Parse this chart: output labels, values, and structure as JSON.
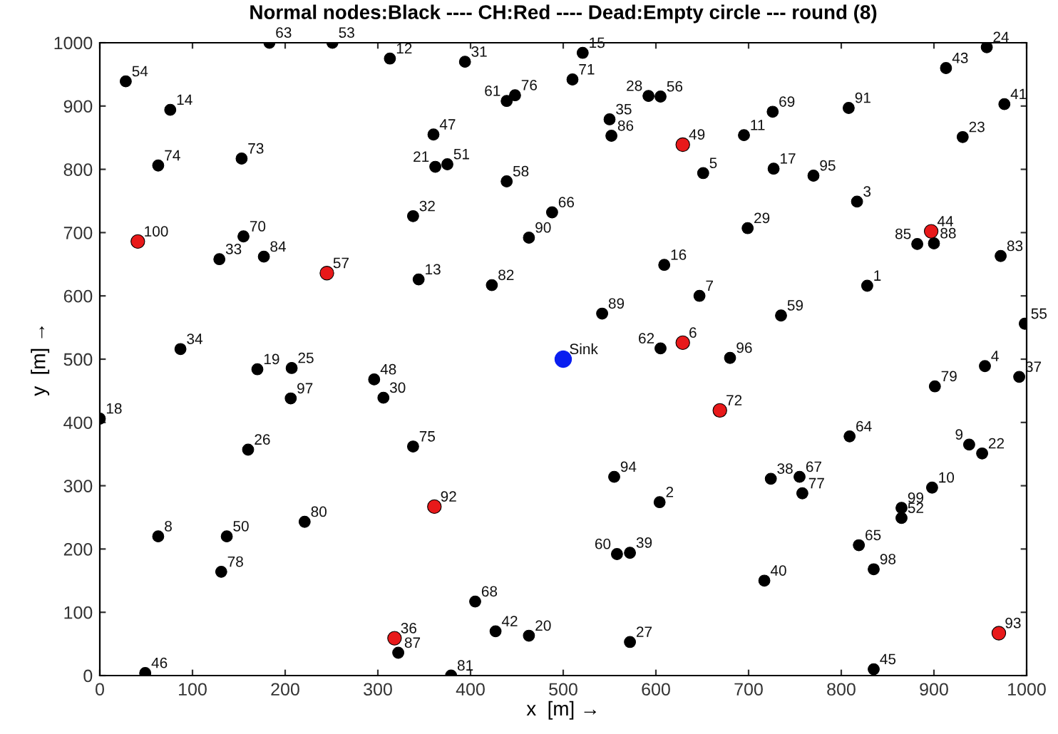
{
  "chart_data": {
    "type": "scatter",
    "title": "Normal nodes:Black ---- CH:Red ---- Dead:Empty circle --- round (8)",
    "xlabel": "x  [m] →",
    "ylabel": "y  [m] →",
    "xlim": [
      0,
      1000
    ],
    "ylim": [
      0,
      1000
    ],
    "xticks": [
      0,
      100,
      200,
      300,
      400,
      500,
      600,
      700,
      800,
      900,
      1000
    ],
    "yticks": [
      0,
      100,
      200,
      300,
      400,
      500,
      600,
      700,
      800,
      900,
      1000
    ],
    "grid": false,
    "marker": "circle",
    "legend": false,
    "series": [
      {
        "color": "#000000",
        "x": [
          183,
          251,
          313,
          28,
          76,
          63,
          153,
          155,
          129,
          177,
          87,
          394,
          521,
          510,
          448,
          439,
          592,
          605,
          550,
          552,
          651,
          360,
          362,
          375,
          439,
          338,
          488,
          463,
          609,
          344,
          423,
          647,
          542,
          605,
          957,
          913,
          976,
          726,
          808,
          695,
          931,
          727,
          770,
          817,
          699,
          900,
          882,
          972,
          828,
          735,
          998,
          680,
          170,
          207,
          296,
          306,
          206,
          0,
          160,
          63,
          137,
          221,
          131,
          49,
          322,
          338,
          555,
          604,
          558,
          572,
          405,
          427,
          463,
          572,
          379,
          955,
          992,
          901,
          809,
          938,
          952,
          724,
          755,
          758,
          898,
          865,
          865,
          819,
          835,
          717,
          835
        ],
        "values": [
          1000,
          1000,
          975,
          939,
          894,
          806,
          817,
          694,
          658,
          662,
          516,
          970,
          984,
          942,
          917,
          908,
          916,
          915,
          879,
          853,
          794,
          855,
          804,
          808,
          781,
          726,
          732,
          692,
          649,
          626,
          617,
          600,
          572,
          517,
          993,
          960,
          903,
          891,
          897,
          854,
          851,
          801,
          790,
          749,
          707,
          683,
          682,
          663,
          616,
          569,
          556,
          502,
          484,
          486,
          468,
          439,
          438,
          406,
          357,
          220,
          220,
          243,
          164,
          4,
          36,
          362,
          314,
          274,
          192,
          194,
          117,
          70,
          63,
          53,
          0,
          489,
          472,
          457,
          378,
          365,
          351,
          311,
          314,
          288,
          297,
          265,
          249,
          206,
          168,
          150,
          10
        ]
      },
      {
        "color": "#e8191a",
        "x": [
          41,
          245,
          629,
          629,
          897,
          669,
          361,
          318,
          970
        ],
        "values": [
          686,
          636,
          839,
          526,
          702,
          419,
          267,
          59,
          67
        ]
      },
      {
        "color": "#0a1ef0",
        "x": [
          500
        ],
        "values": [
          500
        ]
      }
    ],
    "annotations": [
      {
        "text": "63",
        "x": 183,
        "y": 1000
      },
      {
        "text": "53",
        "x": 251,
        "y": 1000
      },
      {
        "text": "12",
        "x": 313,
        "y": 975
      },
      {
        "text": "54",
        "x": 28,
        "y": 939
      },
      {
        "text": "14",
        "x": 76,
        "y": 894
      },
      {
        "text": "74",
        "x": 63,
        "y": 806
      },
      {
        "text": "73",
        "x": 153,
        "y": 817
      },
      {
        "text": "70",
        "x": 155,
        "y": 694
      },
      {
        "text": "33",
        "x": 129,
        "y": 658
      },
      {
        "text": "84",
        "x": 177,
        "y": 662
      },
      {
        "text": "34",
        "x": 87,
        "y": 516
      },
      {
        "text": "31",
        "x": 394,
        "y": 970
      },
      {
        "text": "15",
        "x": 521,
        "y": 984
      },
      {
        "text": "71",
        "x": 510,
        "y": 942
      },
      {
        "text": "76",
        "x": 448,
        "y": 917
      },
      {
        "text": "61",
        "x": 439,
        "y": 908
      },
      {
        "text": "28",
        "x": 592,
        "y": 916
      },
      {
        "text": "56",
        "x": 605,
        "y": 915
      },
      {
        "text": "35",
        "x": 550,
        "y": 879
      },
      {
        "text": "86",
        "x": 552,
        "y": 853
      },
      {
        "text": "5",
        "x": 651,
        "y": 794
      },
      {
        "text": "47",
        "x": 360,
        "y": 855
      },
      {
        "text": "21",
        "x": 362,
        "y": 804
      },
      {
        "text": "51",
        "x": 375,
        "y": 808
      },
      {
        "text": "58",
        "x": 439,
        "y": 781
      },
      {
        "text": "32",
        "x": 338,
        "y": 726
      },
      {
        "text": "66",
        "x": 488,
        "y": 732
      },
      {
        "text": "90",
        "x": 463,
        "y": 692
      },
      {
        "text": "16",
        "x": 609,
        "y": 649
      },
      {
        "text": "13",
        "x": 344,
        "y": 626
      },
      {
        "text": "82",
        "x": 423,
        "y": 617
      },
      {
        "text": "7",
        "x": 647,
        "y": 600
      },
      {
        "text": "89",
        "x": 542,
        "y": 572
      },
      {
        "text": "62",
        "x": 605,
        "y": 517
      },
      {
        "text": "24",
        "x": 957,
        "y": 993
      },
      {
        "text": "43",
        "x": 913,
        "y": 960
      },
      {
        "text": "41",
        "x": 976,
        "y": 903
      },
      {
        "text": "69",
        "x": 726,
        "y": 891
      },
      {
        "text": "91",
        "x": 808,
        "y": 897
      },
      {
        "text": "11",
        "x": 695,
        "y": 854
      },
      {
        "text": "23",
        "x": 931,
        "y": 851
      },
      {
        "text": "17",
        "x": 727,
        "y": 801
      },
      {
        "text": "95",
        "x": 770,
        "y": 790
      },
      {
        "text": "3",
        "x": 817,
        "y": 749
      },
      {
        "text": "29",
        "x": 699,
        "y": 707
      },
      {
        "text": "88",
        "x": 900,
        "y": 683
      },
      {
        "text": "85",
        "x": 882,
        "y": 682
      },
      {
        "text": "83",
        "x": 972,
        "y": 663
      },
      {
        "text": "1",
        "x": 828,
        "y": 616
      },
      {
        "text": "59",
        "x": 735,
        "y": 569
      },
      {
        "text": "55",
        "x": 998,
        "y": 556
      },
      {
        "text": "96",
        "x": 680,
        "y": 502
      },
      {
        "text": "19",
        "x": 170,
        "y": 484
      },
      {
        "text": "25",
        "x": 207,
        "y": 486
      },
      {
        "text": "48",
        "x": 296,
        "y": 468
      },
      {
        "text": "30",
        "x": 306,
        "y": 439
      },
      {
        "text": "97",
        "x": 206,
        "y": 438
      },
      {
        "text": "18",
        "x": 0,
        "y": 406
      },
      {
        "text": "26",
        "x": 160,
        "y": 357
      },
      {
        "text": "8",
        "x": 63,
        "y": 220
      },
      {
        "text": "50",
        "x": 137,
        "y": 220
      },
      {
        "text": "80",
        "x": 221,
        "y": 243
      },
      {
        "text": "78",
        "x": 131,
        "y": 164
      },
      {
        "text": "46",
        "x": 49,
        "y": 4
      },
      {
        "text": "87",
        "x": 322,
        "y": 36
      },
      {
        "text": "75",
        "x": 338,
        "y": 362
      },
      {
        "text": "94",
        "x": 555,
        "y": 314
      },
      {
        "text": "2",
        "x": 604,
        "y": 274
      },
      {
        "text": "60",
        "x": 558,
        "y": 192
      },
      {
        "text": "39",
        "x": 572,
        "y": 194
      },
      {
        "text": "68",
        "x": 405,
        "y": 117
      },
      {
        "text": "42",
        "x": 427,
        "y": 70
      },
      {
        "text": "20",
        "x": 463,
        "y": 63
      },
      {
        "text": "27",
        "x": 572,
        "y": 53
      },
      {
        "text": "81",
        "x": 379,
        "y": 0
      },
      {
        "text": "4",
        "x": 955,
        "y": 489
      },
      {
        "text": "37",
        "x": 992,
        "y": 472
      },
      {
        "text": "79",
        "x": 901,
        "y": 457
      },
      {
        "text": "64",
        "x": 809,
        "y": 378
      },
      {
        "text": "9",
        "x": 938,
        "y": 365
      },
      {
        "text": "22",
        "x": 952,
        "y": 351
      },
      {
        "text": "38",
        "x": 724,
        "y": 311
      },
      {
        "text": "67",
        "x": 755,
        "y": 314
      },
      {
        "text": "77",
        "x": 758,
        "y": 288
      },
      {
        "text": "10",
        "x": 898,
        "y": 297
      },
      {
        "text": "99",
        "x": 865,
        "y": 265
      },
      {
        "text": "52",
        "x": 865,
        "y": 249
      },
      {
        "text": "65",
        "x": 819,
        "y": 206
      },
      {
        "text": "98",
        "x": 835,
        "y": 168
      },
      {
        "text": "40",
        "x": 717,
        "y": 150
      },
      {
        "text": "45",
        "x": 835,
        "y": 10
      },
      {
        "text": "100",
        "x": 41,
        "y": 686
      },
      {
        "text": "57",
        "x": 245,
        "y": 636
      },
      {
        "text": "49",
        "x": 629,
        "y": 839
      },
      {
        "text": "6",
        "x": 629,
        "y": 526
      },
      {
        "text": "44",
        "x": 897,
        "y": 702
      },
      {
        "text": "72",
        "x": 669,
        "y": 419
      },
      {
        "text": "92",
        "x": 361,
        "y": 267
      },
      {
        "text": "36",
        "x": 318,
        "y": 59
      },
      {
        "text": "93",
        "x": 970,
        "y": 67
      },
      {
        "text": "Sink",
        "x": 500,
        "y": 500
      }
    ]
  }
}
